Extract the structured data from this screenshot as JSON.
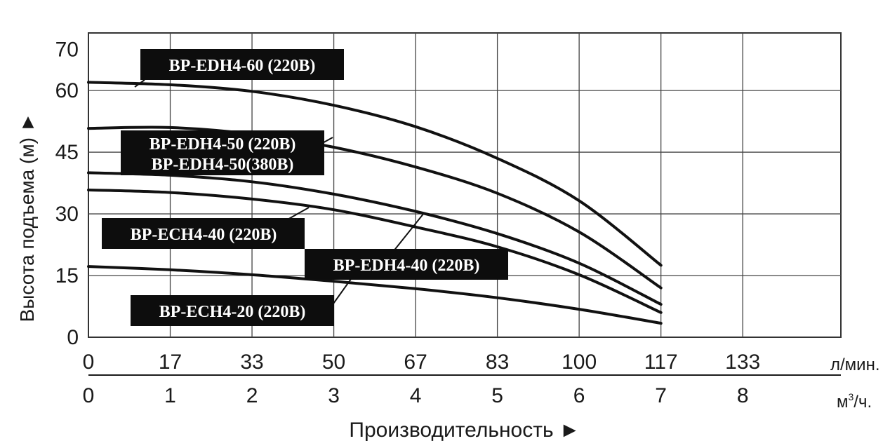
{
  "chart_data": {
    "type": "line",
    "ylabel": "Высота подъема (м)",
    "xlabel": "Производительность",
    "y_ticks": [
      "0",
      "15",
      "30",
      "45",
      "60",
      "70"
    ],
    "y_ylim": [
      0,
      74
    ],
    "x_primary": {
      "unit": "л/мин.",
      "ticks": [
        "0",
        "17",
        "33",
        "50",
        "67",
        "83",
        "100",
        "117",
        "133"
      ]
    },
    "x_secondary": {
      "unit_base": "м",
      "unit_sup": "3",
      "unit_tail": "/ч.",
      "ticks": [
        "0",
        "1",
        "2",
        "3",
        "4",
        "5",
        "6",
        "7",
        "8"
      ]
    },
    "x_range_m3h": [
      0,
      9.2
    ],
    "grid": true,
    "series": [
      {
        "name": "BP-EDH4-60 (220В)",
        "x": [
          0,
          1,
          2,
          3,
          4,
          5,
          6,
          7
        ],
        "y": [
          62,
          61.4,
          59.8,
          56.4,
          51.2,
          43.5,
          33.2,
          17.5
        ]
      },
      {
        "name": "BP-EDH4-50 (220В) / BP-EDH4-50(380В)",
        "x": [
          0,
          1,
          2,
          3,
          4,
          5,
          6,
          7
        ],
        "y": [
          50.8,
          51,
          49.4,
          46.2,
          41.4,
          35,
          25.6,
          12
        ]
      },
      {
        "name": "BP-EDH4-40 (220В)",
        "x": [
          0,
          1,
          2,
          3,
          4,
          5,
          6,
          7
        ],
        "y": [
          40,
          39.4,
          37.8,
          34.8,
          30.6,
          25.2,
          18,
          8
        ]
      },
      {
        "name": "BP-ECH4-40 (220В)",
        "x": [
          0,
          1,
          2,
          3,
          4,
          5,
          6,
          7
        ],
        "y": [
          35.8,
          35.2,
          33.6,
          31,
          26.8,
          22,
          15.2,
          6
        ]
      },
      {
        "name": "BP-ECH4-20 (220В)",
        "x": [
          0,
          1,
          2,
          3,
          4,
          5,
          6,
          7
        ],
        "y": [
          17.2,
          16.4,
          15.2,
          13.6,
          11.8,
          9.6,
          6.8,
          3.4
        ]
      }
    ],
    "labels": [
      {
        "text": "BP-EDH4-60 (220В)"
      },
      {
        "text": "BP-EDH4-50 (220В)"
      },
      {
        "text": "BP-EDH4-50(380В)"
      },
      {
        "text": "BP-ECH4-40 (220В)"
      },
      {
        "text": "BP-EDH4-40 (220В)"
      },
      {
        "text": "BP-ECH4-20 (220В)"
      }
    ]
  }
}
